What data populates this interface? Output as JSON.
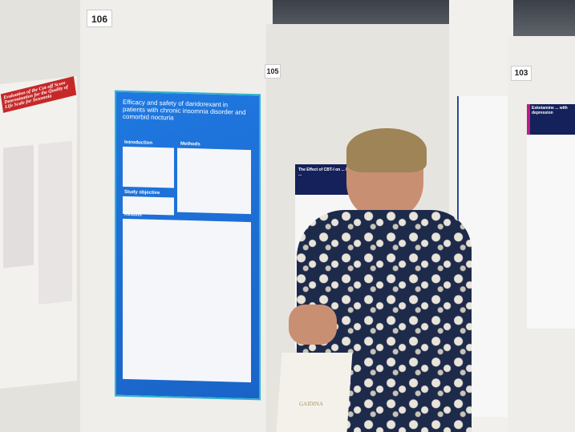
{
  "boards": {
    "left_number": "106",
    "center_number": "105",
    "right_number": "103"
  },
  "left_poster": {
    "title": "Evaluation of the Cut-off Score Determination for the Quality of Life Scale for Insomnia",
    "header_color": "#c62828"
  },
  "main_poster": {
    "title": "Efficacy and safety of daridorexant in patients with chronic insomnia disorder and comorbid nocturia",
    "sections": [
      "Introduction",
      "Methods",
      "Study objective",
      "Results"
    ],
    "color": "#1f78e0"
  },
  "center_poster": {
    "title": "The Effect of CBT-I on ... Patients with ...",
    "header_color": "#15215a"
  },
  "right_poster": {
    "title": "Esketamine ... with depression",
    "header_color": "#15215a"
  },
  "bag": {
    "brand": "GAIDINA"
  }
}
